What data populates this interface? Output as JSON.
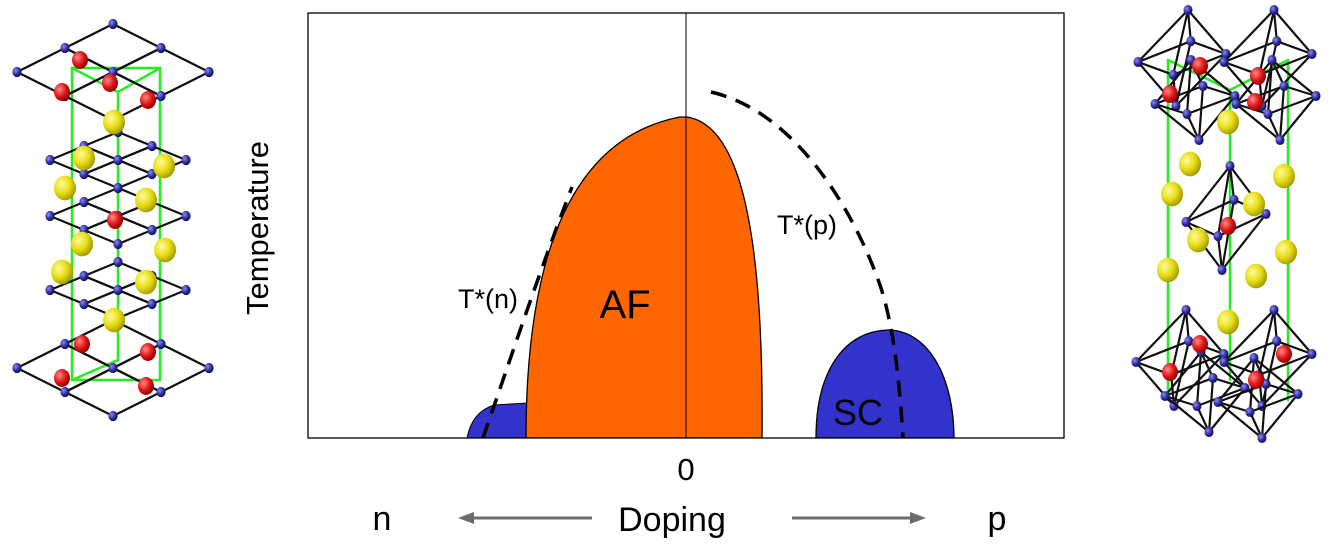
{
  "axes": {
    "y_label": "Temperature",
    "x_zero": "0",
    "x_label": "Doping",
    "left_end": "n",
    "right_end": "p"
  },
  "regions": {
    "af": "AF",
    "sc": "SC",
    "t_star_n": "T*(n)",
    "t_star_p": "T*(p)"
  },
  "colors": {
    "af": "#ff6600",
    "sc": "#3333cc",
    "oxygen_atom": "#e01818",
    "cation_atom": "#d8d010",
    "copper_atom": "#2a2a9a",
    "bond_green": "#22ee22",
    "arrow_gray": "#6b6b6b"
  },
  "structures": {
    "left": "t-prime-crystal-structure",
    "right": "t-crystal-structure"
  }
}
